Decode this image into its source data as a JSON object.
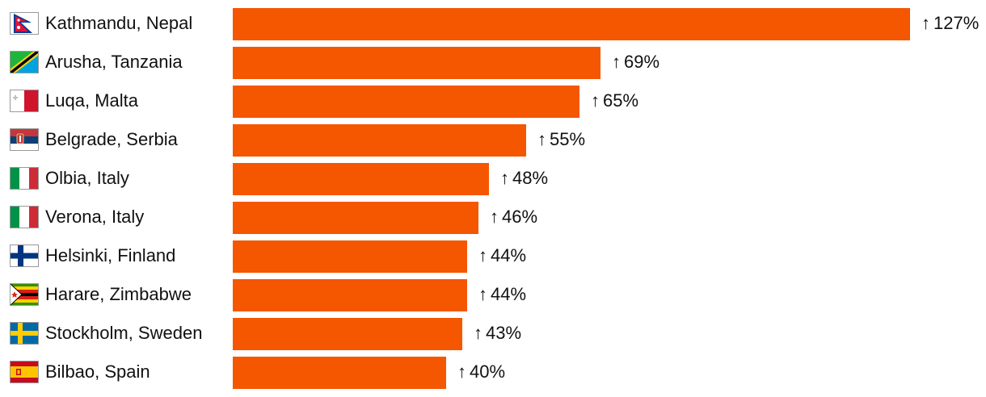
{
  "chart_data": {
    "type": "bar",
    "orientation": "horizontal",
    "title": "",
    "xlabel": "",
    "ylabel": "",
    "bar_color": "#f55600",
    "value_prefix": "↑",
    "value_suffix": "%",
    "xlim": [
      0,
      127
    ],
    "categories": [
      "Kathmandu, Nepal",
      "Arusha, Tanzania",
      "Luqa, Malta",
      "Belgrade, Serbia",
      "Olbia, Italy",
      "Verona, Italy",
      "Helsinki, Finland",
      "Harare, Zimbabwe",
      "Stockholm, Sweden",
      "Bilbao, Spain"
    ],
    "values": [
      127,
      69,
      65,
      55,
      48,
      46,
      44,
      44,
      43,
      40
    ],
    "value_labels": [
      "127%",
      "69%",
      "65%",
      "55%",
      "48%",
      "46%",
      "44%",
      "44%",
      "43%",
      "40%"
    ],
    "flags": [
      "nepal",
      "tanzania",
      "malta",
      "serbia",
      "italy",
      "italy",
      "finland",
      "zimbabwe",
      "sweden",
      "spain"
    ]
  }
}
